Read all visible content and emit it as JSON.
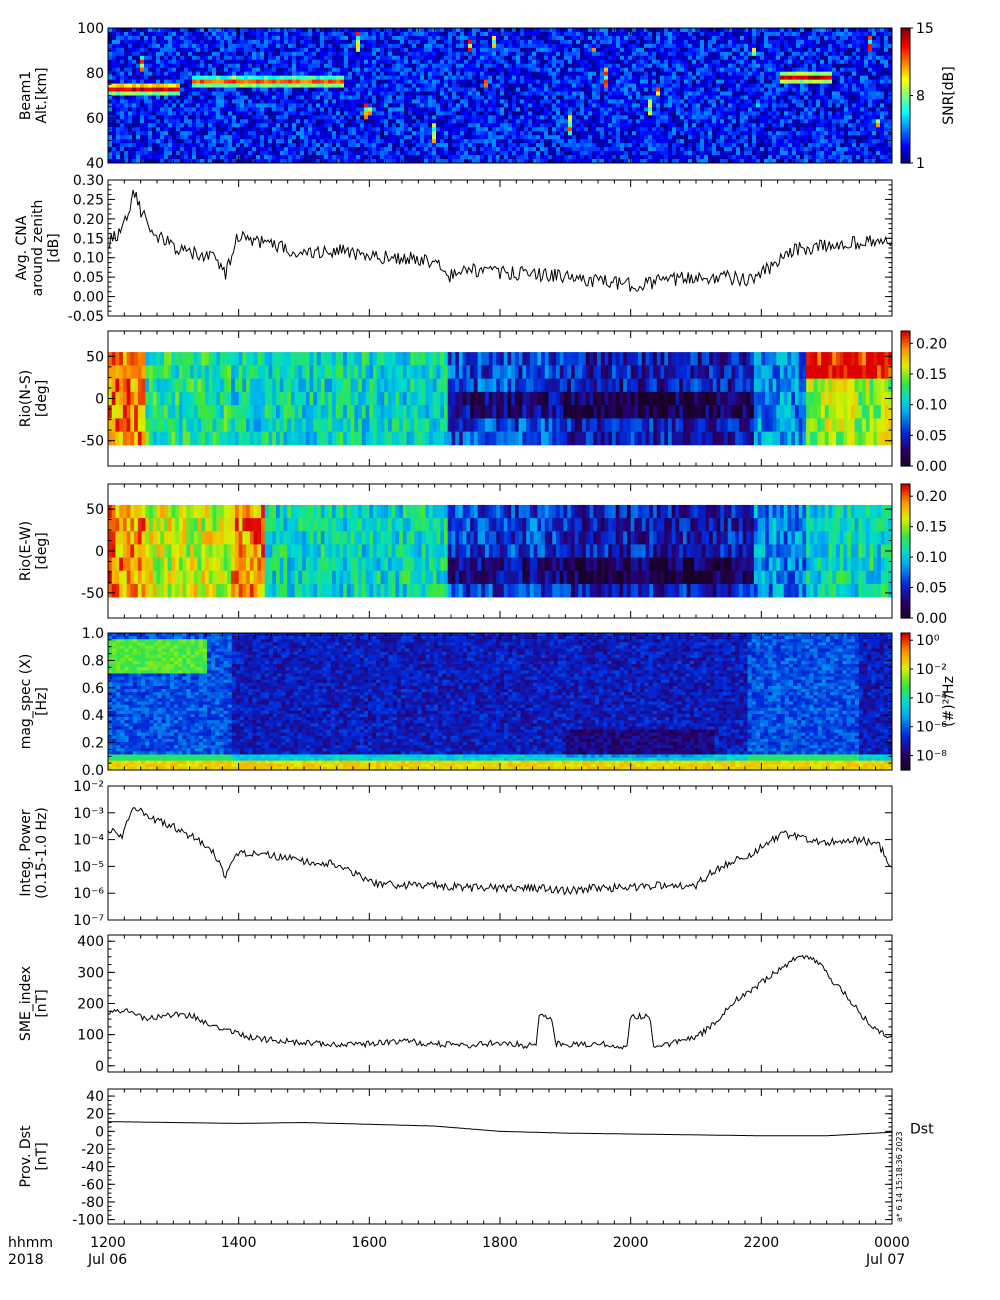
{
  "colors": {
    "frame": "#000000",
    "background": "#ffffff",
    "trace": "#000000"
  },
  "footer": {
    "left_top": "hhmm",
    "left_bottom": "2018",
    "ticks_top": [
      "1200",
      "1400",
      "1600",
      "1800",
      "2000",
      "2200",
      "0000"
    ],
    "date_start": "Jul 06",
    "date_end": "Jul 07"
  },
  "stamp": "a* 6 14 15:18:36 2023",
  "chart_data": [
    {
      "type": "heatmap",
      "id": "beam1",
      "ylabel": [
        "Beam1",
        "Alt.[km]"
      ],
      "ylim": [
        40,
        100
      ],
      "yticks": [
        "100",
        "80",
        "60",
        "40"
      ],
      "yticks_values": [
        100,
        80,
        60,
        40
      ],
      "colorbar": {
        "label": "SNR[dB]",
        "ticks": [
          "15",
          "8",
          "1"
        ],
        "values": [
          15,
          8,
          1
        ],
        "range": [
          1,
          15
        ],
        "palette": "jet"
      },
      "features": [
        {
          "hour_range": [
            12.0,
            13.1
          ],
          "alt": 73,
          "snr": 15
        },
        {
          "hour_range": [
            13.3,
            15.6
          ],
          "alt": 76,
          "snr": 12
        },
        {
          "hour_range": [
            22.3,
            23.1
          ],
          "alt": 78,
          "snr": 14
        }
      ],
      "x_range_hours": [
        12,
        24
      ]
    },
    {
      "type": "line",
      "id": "cna",
      "ylabel": [
        "Avg. CNA",
        "around zenith",
        "[dB]"
      ],
      "ylim": [
        -0.05,
        0.3
      ],
      "yticks": [
        "0.30",
        "0.25",
        "0.20",
        "0.15",
        "0.10",
        "0.05",
        "0.00",
        "-0.05"
      ],
      "yticks_values": [
        0.3,
        0.25,
        0.2,
        0.15,
        0.1,
        0.05,
        0.0,
        -0.05
      ],
      "x": [
        12.0,
        12.2,
        12.4,
        12.5,
        12.7,
        13.0,
        13.3,
        13.6,
        13.8,
        14.0,
        14.3,
        14.6,
        15.0,
        15.5,
        16.0,
        16.5,
        17.0,
        17.2,
        17.5,
        18.0,
        18.5,
        19.0,
        19.5,
        20.0,
        20.5,
        21.0,
        21.5,
        21.8,
        22.2,
        22.5,
        23.0,
        23.5,
        24.0
      ],
      "y": [
        0.14,
        0.17,
        0.27,
        0.22,
        0.16,
        0.13,
        0.11,
        0.1,
        0.06,
        0.16,
        0.14,
        0.13,
        0.11,
        0.12,
        0.1,
        0.1,
        0.09,
        0.05,
        0.07,
        0.06,
        0.06,
        0.05,
        0.04,
        0.03,
        0.04,
        0.05,
        0.05,
        0.04,
        0.08,
        0.12,
        0.13,
        0.14,
        0.14
      ],
      "noise": 0.018
    },
    {
      "type": "heatmap",
      "id": "rio_ns",
      "ylabel": [
        "Rio(N-S)",
        "[deg]"
      ],
      "ylim": [
        -80,
        80
      ],
      "data_range": [
        -55,
        55
      ],
      "yticks": [
        "50",
        "0",
        "-50"
      ],
      "yticks_values": [
        50,
        0,
        -50
      ],
      "colorbar": {
        "ticks": [
          "0.20",
          "0.15",
          "0.10",
          "0.05",
          "0.00"
        ],
        "values": [
          0.2,
          0.15,
          0.1,
          0.05,
          0.0
        ],
        "range": [
          0,
          0.22
        ],
        "palette": "rainbow"
      },
      "x_range_hours": [
        12,
        24
      ]
    },
    {
      "type": "heatmap",
      "id": "rio_ew",
      "ylabel": [
        "Rio(E-W)",
        "[deg]"
      ],
      "ylim": [
        -80,
        80
      ],
      "data_range": [
        -55,
        55
      ],
      "yticks": [
        "50",
        "0",
        "-50"
      ],
      "yticks_values": [
        50,
        0,
        -50
      ],
      "colorbar": {
        "ticks": [
          "0.20",
          "0.15",
          "0.10",
          "0.05",
          "0.00"
        ],
        "values": [
          0.2,
          0.15,
          0.1,
          0.05,
          0.0
        ],
        "range": [
          0,
          0.22
        ],
        "palette": "rainbow"
      },
      "x_range_hours": [
        12,
        24
      ]
    },
    {
      "type": "heatmap",
      "id": "magspec",
      "ylabel": [
        "mag_spec (X)",
        "[Hz]"
      ],
      "ylim": [
        0,
        1.0
      ],
      "yticks": [
        "1.0",
        "0.8",
        "0.6",
        "0.4",
        "0.2",
        "0.0"
      ],
      "yticks_values": [
        1.0,
        0.8,
        0.6,
        0.4,
        0.2,
        0.0
      ],
      "colorbar": {
        "label": "(#)²/Hz",
        "ticks": [
          "10⁰",
          "10⁻²",
          "10⁻⁴",
          "10⁻⁶",
          "10⁻⁸"
        ],
        "values": [
          0,
          -2,
          -4,
          -6,
          -8
        ],
        "range": [
          -9,
          0.5
        ],
        "palette": "rainbow"
      },
      "x_range_hours": [
        12,
        24
      ]
    },
    {
      "type": "line",
      "id": "power",
      "ylabel": [
        "Integ. Power",
        "(0.15-1.0 Hz)"
      ],
      "log_scale": true,
      "ylim_log10": [
        -7,
        -2
      ],
      "yticks": [
        "10⁻²",
        "10⁻³",
        "10⁻⁴",
        "10⁻⁵",
        "10⁻⁶",
        "10⁻⁷"
      ],
      "yticks_values": [
        -2,
        -3,
        -4,
        -5,
        -6,
        -7
      ],
      "x": [
        12.0,
        12.2,
        12.4,
        12.6,
        12.8,
        13.0,
        13.3,
        13.6,
        13.8,
        14.0,
        14.5,
        15.0,
        15.5,
        16.0,
        16.5,
        17.0,
        17.5,
        18.0,
        18.5,
        19.0,
        19.5,
        20.0,
        20.5,
        21.0,
        21.2,
        21.5,
        21.8,
        22.0,
        22.3,
        22.6,
        23.0,
        23.5,
        23.8,
        24.0
      ],
      "y_log10": [
        -3.6,
        -3.9,
        -2.7,
        -3.2,
        -3.3,
        -3.5,
        -3.9,
        -4.4,
        -5.4,
        -4.5,
        -4.6,
        -4.8,
        -4.9,
        -5.6,
        -5.7,
        -5.7,
        -5.8,
        -5.8,
        -5.8,
        -5.9,
        -5.8,
        -5.8,
        -5.7,
        -5.7,
        -5.3,
        -4.9,
        -4.6,
        -4.3,
        -3.8,
        -3.9,
        -4.1,
        -4.0,
        -4.2,
        -5.1
      ],
      "noise": 0.15
    },
    {
      "type": "line",
      "id": "sme",
      "ylabel": [
        "SME_index",
        "[nT]"
      ],
      "ylim": [
        -20,
        420
      ],
      "yticks": [
        "400",
        "300",
        "200",
        "100",
        "0"
      ],
      "yticks_values": [
        400,
        300,
        200,
        100,
        0
      ],
      "x": [
        12.0,
        12.3,
        12.6,
        13.0,
        13.3,
        13.6,
        13.8,
        14.2,
        14.6,
        15.0,
        15.5,
        16.0,
        16.5,
        17.0,
        17.5,
        18.0,
        18.4,
        18.55,
        18.6,
        18.8,
        18.85,
        19.0,
        19.5,
        19.95,
        20.0,
        20.3,
        20.35,
        20.6,
        21.0,
        21.3,
        21.6,
        21.9,
        22.2,
        22.5,
        22.7,
        22.9,
        23.1,
        23.4,
        23.7,
        24.0
      ],
      "y": [
        175,
        180,
        150,
        165,
        160,
        130,
        120,
        90,
        80,
        75,
        70,
        70,
        80,
        70,
        65,
        75,
        65,
        65,
        160,
        155,
        70,
        70,
        70,
        60,
        160,
        160,
        60,
        70,
        90,
        140,
        210,
        250,
        300,
        340,
        350,
        330,
        270,
        200,
        120,
        90
      ],
      "noise": 10
    },
    {
      "type": "line",
      "id": "dst",
      "ylabel": [
        "Prov. Dst",
        "[nT]"
      ],
      "ylim": [
        -105,
        48
      ],
      "yticks": [
        "40",
        "20",
        "0",
        "-20",
        "-40",
        "-60",
        "-80",
        "-100"
      ],
      "yticks_values": [
        40,
        20,
        0,
        -20,
        -40,
        -60,
        -80,
        -100
      ],
      "legend": "Dst",
      "x": [
        12.0,
        13.0,
        14.0,
        15.0,
        16.0,
        17.0,
        18.0,
        19.0,
        20.0,
        21.0,
        22.0,
        23.0,
        24.0
      ],
      "y": [
        11,
        10,
        9,
        10,
        8,
        6,
        0,
        -2,
        -3,
        -4,
        -5,
        -5,
        -1
      ],
      "noise": 0
    }
  ]
}
